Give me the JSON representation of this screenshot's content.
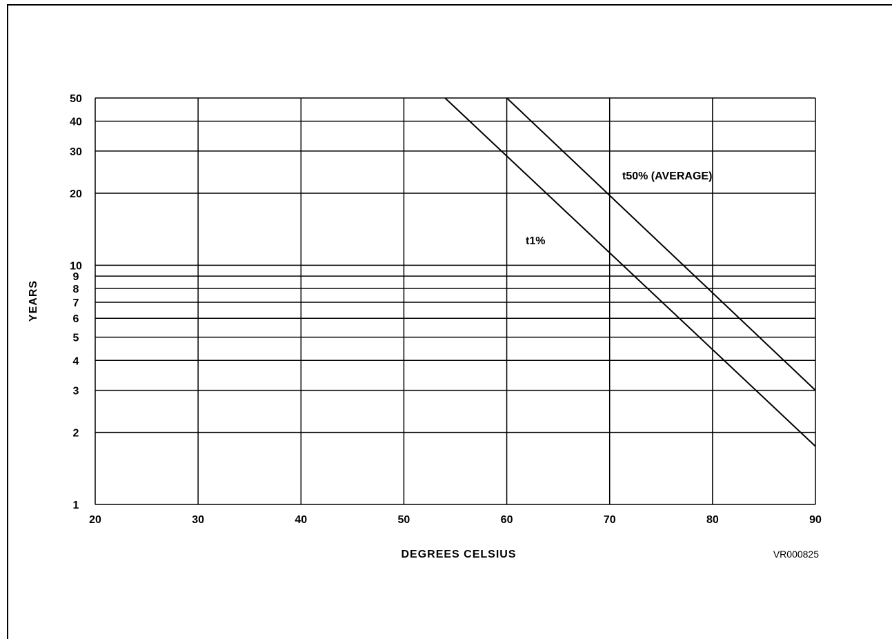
{
  "chart_data": {
    "type": "line",
    "x_scale": "linear",
    "y_scale": "log",
    "xlabel": "DEGREES CELSIUS",
    "ylabel": "YEARS",
    "xlim": [
      20,
      90
    ],
    "ylim": [
      1,
      50
    ],
    "x_ticks": [
      20,
      30,
      40,
      50,
      60,
      70,
      80,
      90
    ],
    "y_ticks": [
      1,
      2,
      3,
      4,
      5,
      6,
      7,
      8,
      9,
      10,
      20,
      30,
      40,
      50
    ],
    "grid": true,
    "series": [
      {
        "name": "t1%",
        "x": [
          54,
          90
        ],
        "y": [
          50,
          1.75
        ]
      },
      {
        "name": "t50% (AVERAGE)",
        "x": [
          60,
          90
        ],
        "y": [
          50,
          3
        ]
      }
    ],
    "figure_code": "VR000825"
  }
}
